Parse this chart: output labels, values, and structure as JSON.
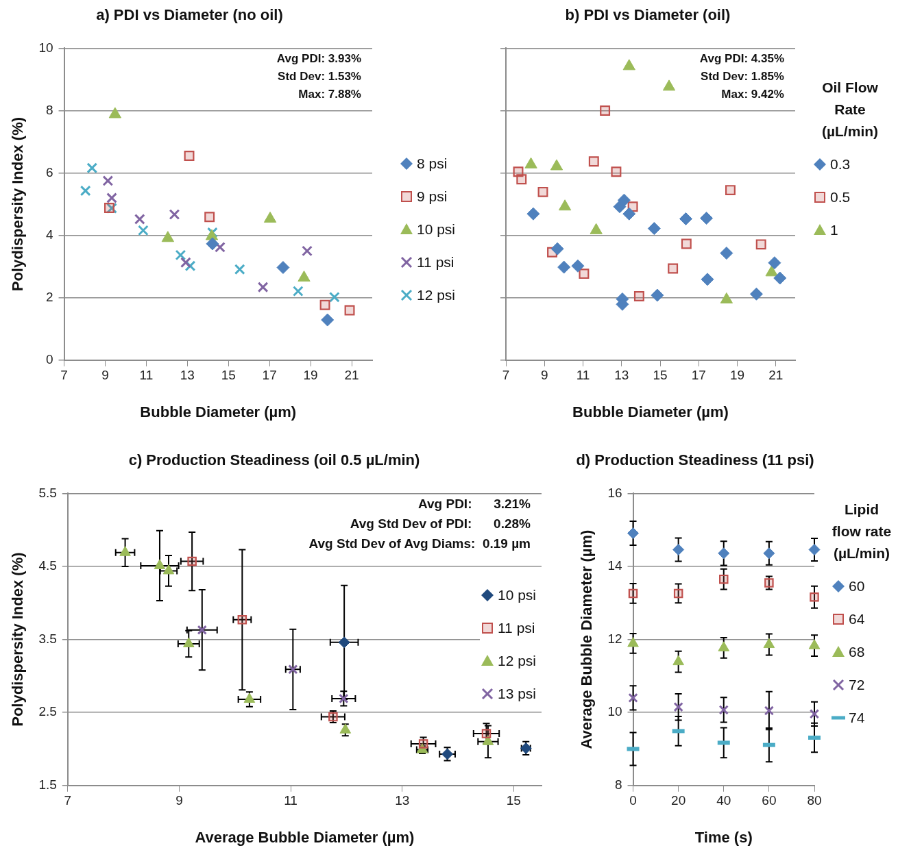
{
  "chart_data": [
    {
      "type": "scatter",
      "title": "a) PDI vs Diameter (no oil)",
      "xlabel": "Bubble Diameter (µm)",
      "ylabel": "Polydispersity Index (%)",
      "xlim": [
        7,
        22
      ],
      "xticks": [
        7,
        9,
        11,
        13,
        15,
        17,
        19,
        21
      ],
      "ylim": [
        0,
        10
      ],
      "yticks": [
        0,
        2,
        4,
        6,
        8,
        10
      ],
      "grid": "y",
      "legend": "right",
      "annotations": [
        "Avg PDI: 3.93%",
        "Std Dev: 1.53%",
        "Max: 7.88%"
      ],
      "series": [
        {
          "name": "8 psi",
          "color": "#4f81bd",
          "marker": "diamond",
          "x": [
            14.22,
            17.66,
            19.82
          ],
          "values": [
            3.73,
            2.97,
            1.29
          ]
        },
        {
          "name": "9 psi",
          "color": "#c0504d",
          "marker": "square",
          "x": [
            9.2,
            13.09,
            14.08,
            19.7,
            20.9
          ],
          "values": [
            4.88,
            6.55,
            4.59,
            1.77,
            1.6
          ]
        },
        {
          "name": "10 psi",
          "color": "#9bbb59",
          "marker": "triangle",
          "x": [
            9.48,
            12.05,
            14.19,
            17.03,
            18.68
          ],
          "values": [
            7.88,
            3.91,
            3.97,
            4.53,
            2.64
          ]
        },
        {
          "name": "11 psi",
          "color": "#8064a2",
          "marker": "cross",
          "x": [
            9.13,
            9.32,
            10.68,
            12.37,
            12.92,
            14.59,
            16.68,
            18.83
          ],
          "values": [
            5.75,
            5.2,
            4.52,
            4.67,
            3.13,
            3.62,
            2.34,
            3.5
          ]
        },
        {
          "name": "12 psi",
          "color": "#4bacc6",
          "marker": "cross",
          "x": [
            8.04,
            8.36,
            9.32,
            10.85,
            12.67,
            13.14,
            14.22,
            15.55,
            18.39,
            20.16
          ],
          "values": [
            5.43,
            6.16,
            4.87,
            4.16,
            3.37,
            3.02,
            4.09,
            2.91,
            2.21,
            2.02
          ]
        }
      ]
    },
    {
      "type": "scatter",
      "title": "b) PDI vs Diameter (oil)",
      "xlabel": "Bubble Diameter (µm)",
      "xlim": [
        7,
        22
      ],
      "xticks": [
        7,
        9,
        11,
        13,
        15,
        17,
        19,
        21
      ],
      "ylim": [
        0,
        10
      ],
      "yticks": [
        0,
        2,
        4,
        6,
        8,
        10
      ],
      "tick_labels": "x",
      "grid": "y",
      "legend": "right",
      "legend_title": "Oil Flow Rate (µL/min)",
      "annotations": [
        "Avg PDI: 4.35%",
        "Std Dev: 1.85%",
        "Max: 9.42%"
      ],
      "series": [
        {
          "name": "0.3",
          "color": "#4f81bd",
          "marker": "diamond",
          "x": [
            8.42,
            9.67,
            10.01,
            10.73,
            12.9,
            13.13,
            13.39,
            13.04,
            13.04,
            14.69,
            14.85,
            16.33,
            17.4,
            17.45,
            18.44,
            19.99,
            20.93,
            21.21
          ],
          "values": [
            4.69,
            3.57,
            2.98,
            3.02,
            4.92,
            5.13,
            4.69,
            1.96,
            1.79,
            4.22,
            2.08,
            4.53,
            4.55,
            2.59,
            3.43,
            2.12,
            3.12,
            2.63
          ]
        },
        {
          "name": "0.5",
          "color": "#c0504d",
          "marker": "square",
          "x": [
            7.64,
            7.81,
            8.92,
            9.4,
            11.05,
            11.56,
            12.14,
            12.72,
            13.58,
            13.91,
            15.66,
            16.36,
            18.64,
            20.23
          ],
          "values": [
            6.04,
            5.8,
            5.39,
            3.46,
            2.77,
            6.37,
            8.0,
            6.04,
            4.92,
            2.05,
            2.94,
            3.73,
            5.45,
            3.71
          ]
        },
        {
          "name": "1",
          "color": "#9bbb59",
          "marker": "triangle",
          "x": [
            8.3,
            9.63,
            10.06,
            11.68,
            13.39,
            15.46,
            18.44,
            20.78
          ],
          "values": [
            6.27,
            6.21,
            4.92,
            4.16,
            9.42,
            8.76,
            1.94,
            2.81
          ]
        }
      ]
    },
    {
      "type": "scatter",
      "title": "c) Production Steadiness (oil 0.5 µL/min)",
      "xlabel": "Average Bubble Diameter (µm)",
      "ylabel": "Polydispersity Index (%)",
      "xlim": [
        7,
        15.5
      ],
      "xticks": [
        7,
        9,
        11,
        13,
        15
      ],
      "ylim": [
        1.5,
        5.5
      ],
      "yticks": [
        1.5,
        2.5,
        3.5,
        4.5,
        5.5
      ],
      "grid": "y",
      "legend": "right",
      "annotations": [
        "Avg PDI:      3.21%",
        "Avg Std Dev of PDI:      0.28%",
        "Avg Std Dev of Avg Diams:  0.19 µm"
      ],
      "series": [
        {
          "name": "10 psi",
          "color": "#1f497d",
          "marker": "diamond",
          "x": [
            11.96,
            13.81,
            15.22
          ],
          "values": [
            3.46,
            1.93,
            2.01
          ],
          "errors": [
            0.78,
            0.09,
            0.09
          ],
          "xerrors": [
            0.25,
            0.14,
            0.08
          ]
        },
        {
          "name": "11 psi",
          "color": "#c0504d",
          "marker": "square",
          "x": [
            9.23,
            10.13,
            11.76,
            13.38,
            14.51
          ],
          "values": [
            4.57,
            3.77,
            2.44,
            2.07,
            2.21
          ],
          "errors": [
            0.4,
            0.96,
            0.08,
            0.09,
            0.14
          ],
          "xerrors": [
            0.2,
            0.16,
            0.21,
            0.22,
            0.23
          ]
        },
        {
          "name": "12 psi",
          "color": "#9bbb59",
          "marker": "triangle",
          "x": [
            8.03,
            8.65,
            8.81,
            9.17,
            10.26,
            11.98,
            13.36,
            14.54
          ],
          "values": [
            4.69,
            4.51,
            4.44,
            3.44,
            2.68,
            2.26,
            1.99,
            2.1
          ],
          "errors": [
            0.19,
            0.48,
            0.21,
            0.18,
            0.1,
            0.08,
            0.05,
            0.22
          ],
          "xerrors": [
            0.17,
            0.34,
            0.15,
            0.19,
            0.2,
            null,
            0.1,
            0.18
          ]
        },
        {
          "name": "13 psi",
          "color": "#8064a2",
          "marker": "cross",
          "x": [
            9.41,
            11.04,
            11.95
          ],
          "values": [
            3.63,
            3.09,
            2.69
          ],
          "errors": [
            0.55,
            0.55,
            0.1
          ],
          "xerrors": [
            0.27,
            0.13,
            0.21
          ]
        }
      ]
    },
    {
      "type": "scatter",
      "title": "d) Production Steadiness (11 psi)",
      "xlabel": "Time (s)",
      "ylabel": "Average Bubble Diameter (µm)",
      "xlim": [
        0,
        80
      ],
      "xticks": [
        0,
        20,
        40,
        60,
        80
      ],
      "ylim": [
        8,
        16
      ],
      "yticks": [
        8,
        10,
        12,
        14,
        16
      ],
      "grid": "y",
      "legend": "right",
      "legend_title": "Lipid flow rate (µL/min)",
      "x": [
        0,
        20,
        40,
        60,
        80
      ],
      "series": [
        {
          "name": "60",
          "color": "#4f81bd",
          "marker": "diamond",
          "values": [
            14.91,
            14.46,
            14.36,
            14.36,
            14.46
          ],
          "errors": [
            0.33,
            0.32,
            0.33,
            0.32,
            0.31
          ]
        },
        {
          "name": "64",
          "color": "#c0504d",
          "marker": "square",
          "values": [
            13.26,
            13.26,
            13.65,
            13.55,
            13.16
          ],
          "errors": [
            0.27,
            0.26,
            0.28,
            0.18,
            0.3
          ]
        },
        {
          "name": "68",
          "color": "#9bbb59",
          "marker": "triangle",
          "values": [
            11.89,
            11.39,
            11.77,
            11.86,
            11.83
          ],
          "errors": [
            0.27,
            0.29,
            0.28,
            0.29,
            0.29
          ]
        },
        {
          "name": "72",
          "color": "#8064a2",
          "marker": "cross",
          "values": [
            10.4,
            10.15,
            10.07,
            10.05,
            9.96
          ],
          "errors": [
            0.33,
            0.36,
            0.34,
            0.52,
            0.33
          ]
        },
        {
          "name": "74",
          "color": "#4bacc6",
          "values": [
            9.0,
            9.49,
            9.17,
            9.11,
            9.31
          ],
          "errors": [
            0.45,
            0.4,
            0.41,
            0.46,
            0.4
          ]
        }
      ]
    }
  ]
}
